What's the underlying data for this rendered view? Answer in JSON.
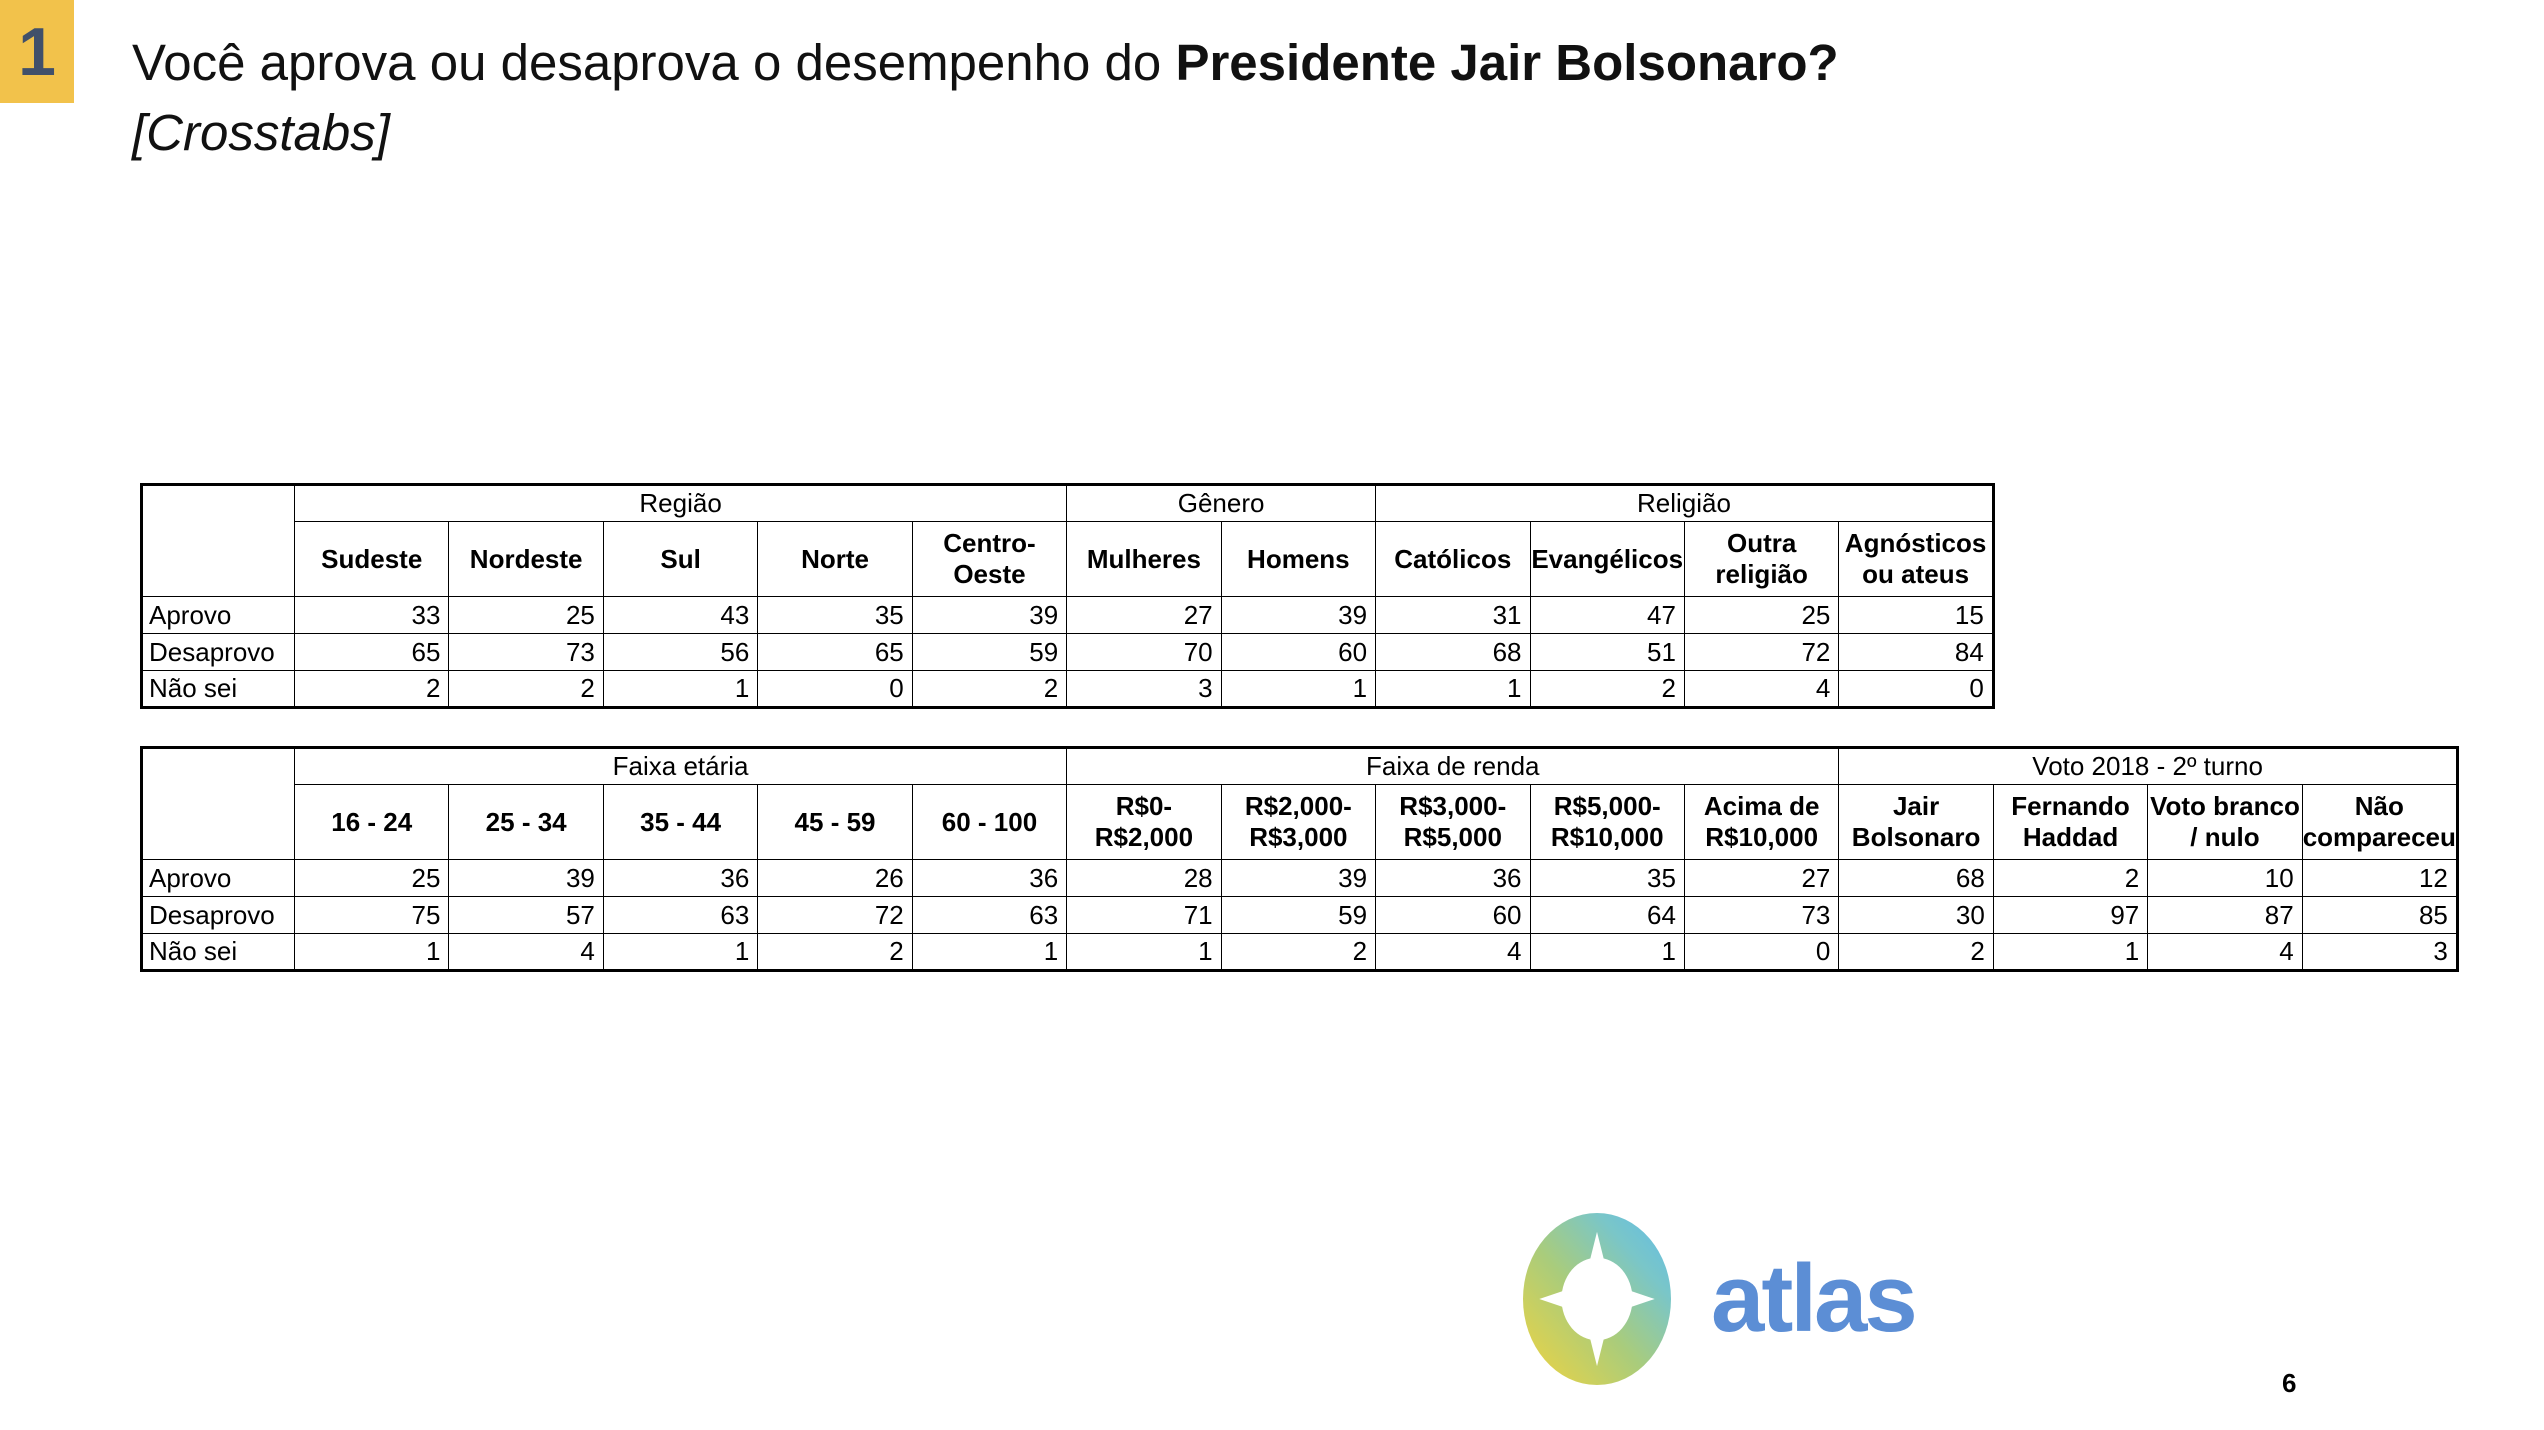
{
  "slide": {
    "badge_number": "1",
    "badge_color": "#F2C24B",
    "badge_text_color": "#41506A",
    "title_prefix": "Você aprova ou desaprova o desempenho do ",
    "title_bold": "Presidente Jair Bolsonaro?",
    "subtitle": "[Crosstabs]",
    "page_number": "6",
    "logo_text": "atlas",
    "logo_text_color": "#5C8ED5",
    "logo_gradient": [
      "#F2D43E",
      "#A9CC7C",
      "#7AC6C8",
      "#5FBCEA"
    ]
  },
  "table1": {
    "groups": [
      {
        "label": "Região",
        "span": 5
      },
      {
        "label": "Gênero",
        "span": 2
      },
      {
        "label": "Religião",
        "span": 4
      }
    ],
    "group_starts": [
      0,
      5,
      7
    ],
    "columns": [
      "Sudeste",
      "Nordeste",
      "Sul",
      "Norte",
      "Centro-\nOeste",
      "Mulheres",
      "Homens",
      "Católicos",
      "Evangélicos",
      "Outra\nreligião",
      "Agnósticos\nou ateus"
    ],
    "rows": [
      {
        "label": "Aprovo",
        "values": [
          33,
          25,
          43,
          35,
          39,
          27,
          39,
          31,
          47,
          25,
          15
        ]
      },
      {
        "label": "Desaprovo",
        "values": [
          65,
          73,
          56,
          65,
          59,
          70,
          60,
          68,
          51,
          72,
          84
        ]
      },
      {
        "label": "Não sei",
        "values": [
          2,
          2,
          1,
          0,
          2,
          3,
          1,
          1,
          2,
          4,
          0
        ]
      }
    ],
    "label_col_width": 153,
    "data_col_width": 154.45
  },
  "table2": {
    "groups": [
      {
        "label": "Faixa etária",
        "span": 5
      },
      {
        "label": "Faixa de renda",
        "span": 5
      },
      {
        "label": "Voto 2018 - 2º turno",
        "span": 4
      }
    ],
    "group_starts": [
      0,
      5,
      10
    ],
    "columns": [
      "16 - 24",
      "25 - 34",
      "35 - 44",
      "45 - 59",
      "60 - 100",
      "R$0-\nR$2,000",
      "R$2,000-\nR$3,000",
      "R$3,000-\nR$5,000",
      "R$5,000-\nR$10,000",
      "Acima de\nR$10,000",
      "Jair\nBolsonaro",
      "Fernando\nHaddad",
      "Voto branco\n/ nulo",
      "Não\ncompareceu"
    ],
    "rows": [
      {
        "label": "Aprovo",
        "values": [
          25,
          39,
          36,
          26,
          36,
          28,
          39,
          36,
          35,
          27,
          68,
          2,
          10,
          12
        ]
      },
      {
        "label": "Desaprovo",
        "values": [
          75,
          57,
          63,
          72,
          63,
          71,
          59,
          60,
          64,
          73,
          30,
          97,
          87,
          85
        ]
      },
      {
        "label": "Não sei",
        "values": [
          1,
          4,
          1,
          2,
          1,
          1,
          2,
          4,
          1,
          0,
          2,
          1,
          4,
          3
        ]
      }
    ],
    "label_col_width": 153,
    "data_col_width": 154.45
  }
}
